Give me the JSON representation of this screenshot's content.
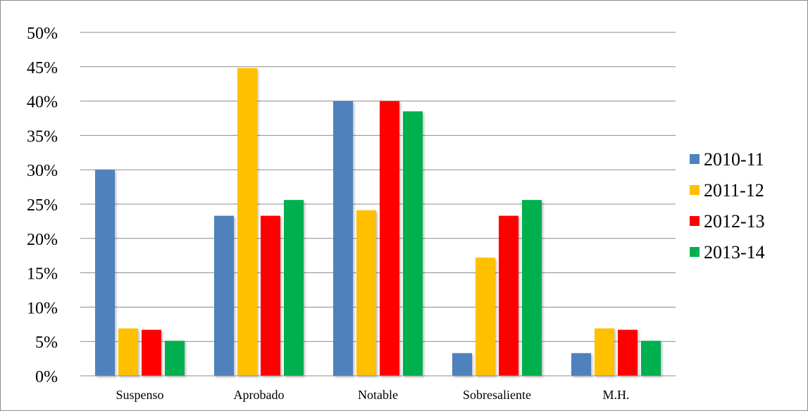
{
  "chart_data": {
    "type": "bar",
    "title": "",
    "xlabel": "",
    "ylabel": "",
    "categories": [
      "Suspenso",
      "Aprobado",
      "Notable",
      "Sobresaliente",
      "M.H."
    ],
    "series": [
      {
        "name": "2010-11",
        "color": "#4F81BD",
        "values": [
          30,
          23.3,
          40,
          3.3,
          3.3
        ]
      },
      {
        "name": "2011-12",
        "color": "#FFC000",
        "values": [
          6.9,
          44.8,
          24.1,
          17.2,
          6.9
        ]
      },
      {
        "name": "2012-13",
        "color": "#FF0000",
        "values": [
          6.7,
          23.3,
          40,
          23.3,
          6.7
        ]
      },
      {
        "name": "2013-14",
        "color": "#00B050",
        "values": [
          5.1,
          25.6,
          38.5,
          25.6,
          5.1
        ]
      }
    ],
    "ylim": [
      0,
      50
    ],
    "ytick_step": 5,
    "ytick_labels": [
      "0%",
      "5%",
      "10%",
      "15%",
      "20%",
      "25%",
      "30%",
      "35%",
      "40%",
      "45%",
      "50%"
    ],
    "grid": true,
    "legend_position": "right"
  }
}
